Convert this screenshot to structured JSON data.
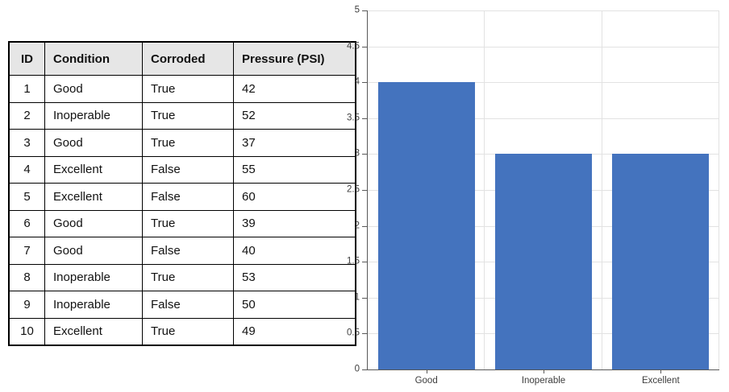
{
  "table": {
    "headers": [
      "ID",
      "Condition",
      "Corroded",
      "Pressure (PSI)"
    ],
    "rows": [
      [
        "1",
        "Good",
        "True",
        "42"
      ],
      [
        "2",
        "Inoperable",
        "True",
        "52"
      ],
      [
        "3",
        "Good",
        "True",
        "37"
      ],
      [
        "4",
        "Excellent",
        "False",
        "55"
      ],
      [
        "5",
        "Excellent",
        "False",
        "60"
      ],
      [
        "6",
        "Good",
        "True",
        "39"
      ],
      [
        "7",
        "Good",
        "False",
        "40"
      ],
      [
        "8",
        "Inoperable",
        "True",
        "53"
      ],
      [
        "9",
        "Inoperable",
        "False",
        "50"
      ],
      [
        "10",
        "Excellent",
        "True",
        "49"
      ]
    ]
  },
  "chart_data": {
    "type": "bar",
    "categories": [
      "Good",
      "Inoperable",
      "Excellent"
    ],
    "values": [
      4,
      3,
      3
    ],
    "title": "",
    "xlabel": "",
    "ylabel": "",
    "ylim": [
      0,
      5
    ],
    "ytick_step": 0.5,
    "grid": true,
    "legend": false,
    "bar_color": "#4473BE"
  },
  "colors": {
    "background": "#FFFFFF",
    "table_header_bg": "#E6E6E6",
    "table_border": "#000000",
    "gridline": "#E2E2E2",
    "axis_line": "#595959",
    "tick_label": "#3D3D3D",
    "bar": "#4473BE"
  }
}
